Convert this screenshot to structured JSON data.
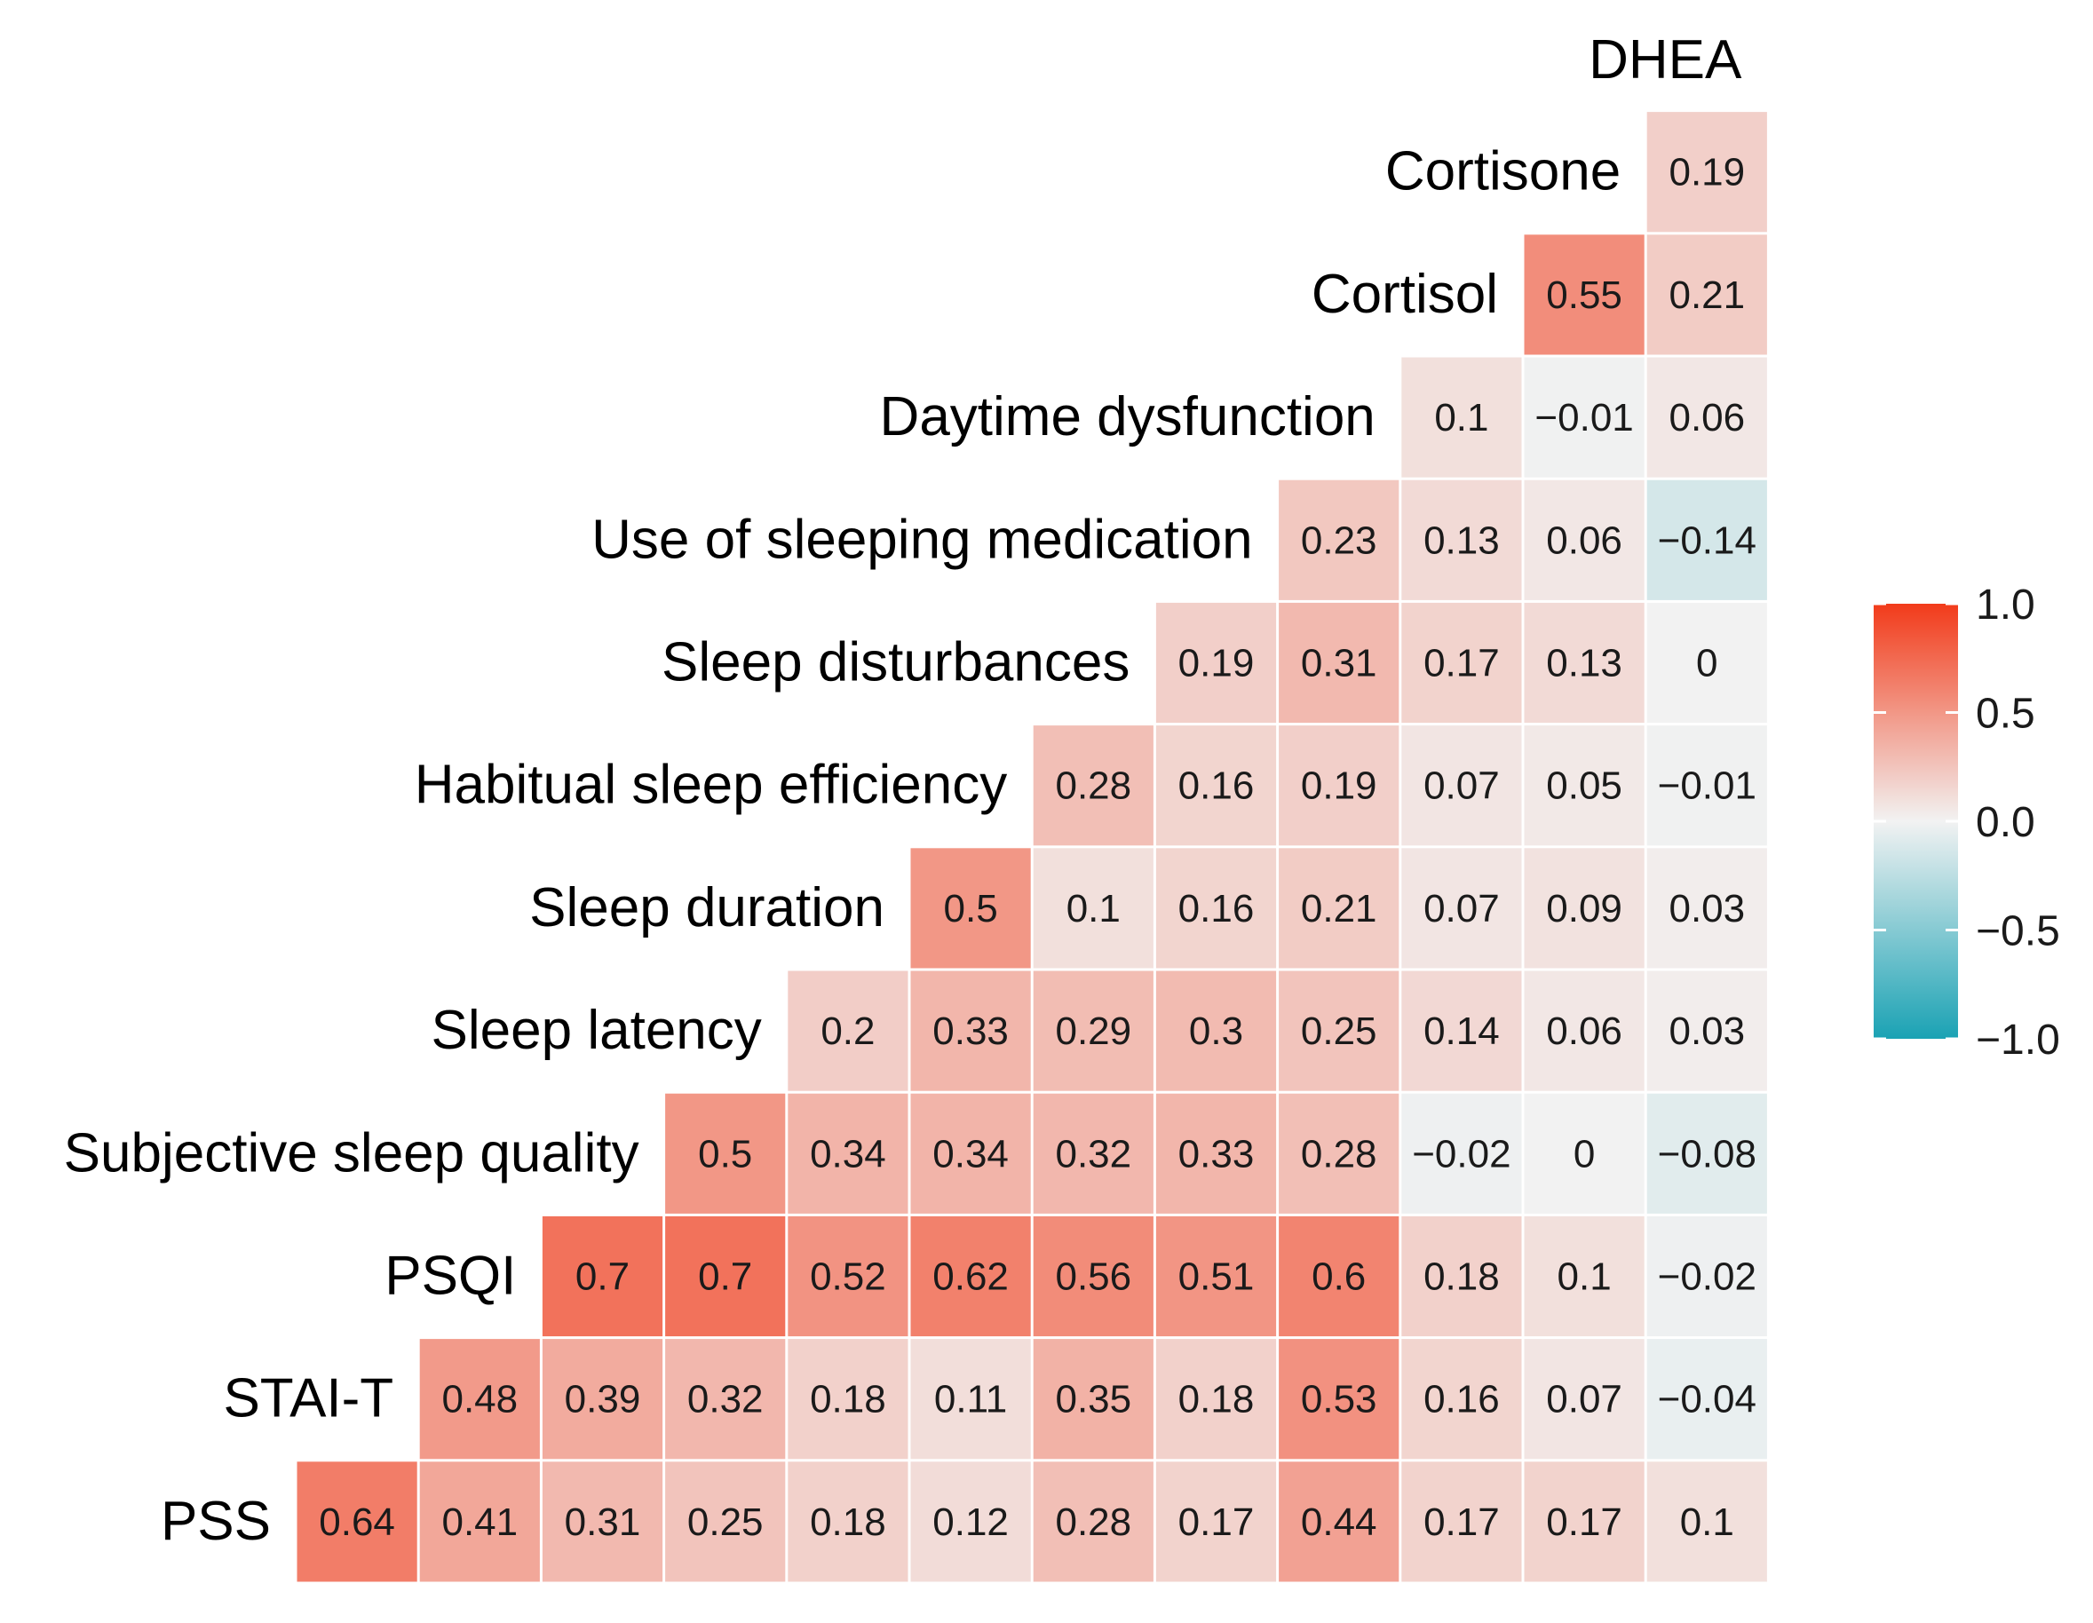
{
  "chart_data": {
    "type": "heatmap",
    "title": "",
    "variables": [
      "PSS",
      "STAI-T",
      "PSQI",
      "Subjective sleep quality",
      "Sleep latency",
      "Sleep duration",
      "Habitual sleep efficiency",
      "Sleep disturbances",
      "Use of sleeping medication",
      "Daytime dysfunction",
      "Cortisol",
      "Cortisone",
      "DHEA"
    ],
    "display_values": [
      [
        "0.64",
        "0.41",
        "0.31",
        "0.25",
        "0.18",
        "0.12",
        "0.28",
        "0.17",
        "0.44",
        "0.17",
        "0.17",
        "0.1"
      ],
      [
        "0.48",
        "0.39",
        "0.32",
        "0.18",
        "0.11",
        "0.35",
        "0.18",
        "0.53",
        "0.16",
        "0.07",
        "−0.04"
      ],
      [
        "0.7",
        "0.7",
        "0.52",
        "0.62",
        "0.56",
        "0.51",
        "0.6",
        "0.18",
        "0.1",
        "−0.02"
      ],
      [
        "0.5",
        "0.34",
        "0.34",
        "0.32",
        "0.33",
        "0.28",
        "−0.02",
        "0",
        "−0.08"
      ],
      [
        "0.2",
        "0.33",
        "0.29",
        "0.3",
        "0.25",
        "0.14",
        "0.06",
        "0.03"
      ],
      [
        "0.5",
        "0.1",
        "0.16",
        "0.21",
        "0.07",
        "0.09",
        "0.03"
      ],
      [
        "0.28",
        "0.16",
        "0.19",
        "0.07",
        "0.05",
        "−0.01"
      ],
      [
        "0.19",
        "0.31",
        "0.17",
        "0.13",
        "0"
      ],
      [
        "0.23",
        "0.13",
        "0.06",
        "−0.14"
      ],
      [
        "0.1",
        "−0.01",
        "0.06"
      ],
      [
        "0.55",
        "0.21"
      ],
      [
        "0.19"
      ]
    ],
    "values": [
      [
        0.64,
        0.41,
        0.31,
        0.25,
        0.18,
        0.12,
        0.28,
        0.17,
        0.44,
        0.17,
        0.17,
        0.1
      ],
      [
        0.48,
        0.39,
        0.32,
        0.18,
        0.11,
        0.35,
        0.18,
        0.53,
        0.16,
        0.07,
        -0.04
      ],
      [
        0.7,
        0.7,
        0.52,
        0.62,
        0.56,
        0.51,
        0.6,
        0.18,
        0.1,
        -0.02
      ],
      [
        0.5,
        0.34,
        0.34,
        0.32,
        0.33,
        0.28,
        -0.02,
        0,
        -0.08
      ],
      [
        0.2,
        0.33,
        0.29,
        0.3,
        0.25,
        0.14,
        0.06,
        0.03
      ],
      [
        0.5,
        0.1,
        0.16,
        0.21,
        0.07,
        0.09,
        0.03
      ],
      [
        0.28,
        0.16,
        0.19,
        0.07,
        0.05,
        -0.01
      ],
      [
        0.19,
        0.31,
        0.17,
        0.13,
        0
      ],
      [
        0.23,
        0.13,
        0.06,
        -0.14
      ],
      [
        0.1,
        -0.01,
        0.06
      ],
      [
        0.55,
        0.21
      ],
      [
        0.19
      ]
    ],
    "color_scale": {
      "range": [
        -1.0,
        1.0
      ],
      "low": "#1aa2b4",
      "mid": "#f2f2f2",
      "high": "#f23b1a",
      "ticks": [
        "1.0",
        "0.5",
        "0.0",
        "−0.5",
        "−1.0"
      ],
      "tick_values": [
        1.0,
        0.5,
        0.0,
        -0.5,
        -1.0
      ]
    },
    "legend_position": "right"
  }
}
